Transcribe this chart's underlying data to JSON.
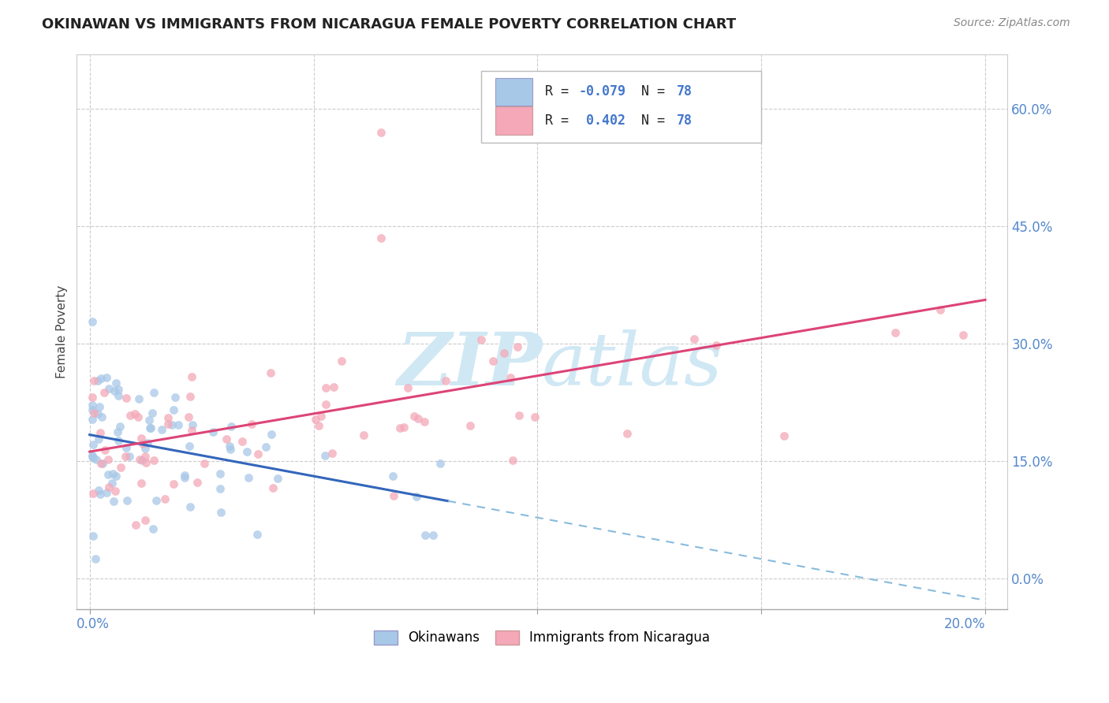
{
  "title": "OKINAWAN VS IMMIGRANTS FROM NICARAGUA FEMALE POVERTY CORRELATION CHART",
  "source": "Source: ZipAtlas.com",
  "ylabel_label": "Female Poverty",
  "legend_label1": "Okinawans",
  "legend_label2": "Immigrants from Nicaragua",
  "R1": "-0.079",
  "N1": "78",
  "R2": "0.402",
  "N2": "78",
  "color_blue": "#a8c8e8",
  "color_pink": "#f4a8b8",
  "color_blue_line": "#3366bb",
  "color_pink_line": "#dd4477",
  "color_dashed_line": "#88bbdd",
  "watermark_color": "#d0e8f4",
  "grid_color": "#cccccc",
  "tick_color": "#5588cc",
  "title_color": "#222222",
  "source_color": "#888888",
  "ylabel_color": "#444444",
  "legend_text_color_dark": "#222222",
  "legend_text_color_blue": "#4477cc",
  "xlim": [
    -0.003,
    0.205
  ],
  "ylim": [
    -0.04,
    0.67
  ],
  "xtick_vals": [
    0.0,
    0.05,
    0.1,
    0.15,
    0.2
  ],
  "ytick_vals": [
    0.0,
    0.15,
    0.3,
    0.45,
    0.6
  ],
  "seed": 99
}
